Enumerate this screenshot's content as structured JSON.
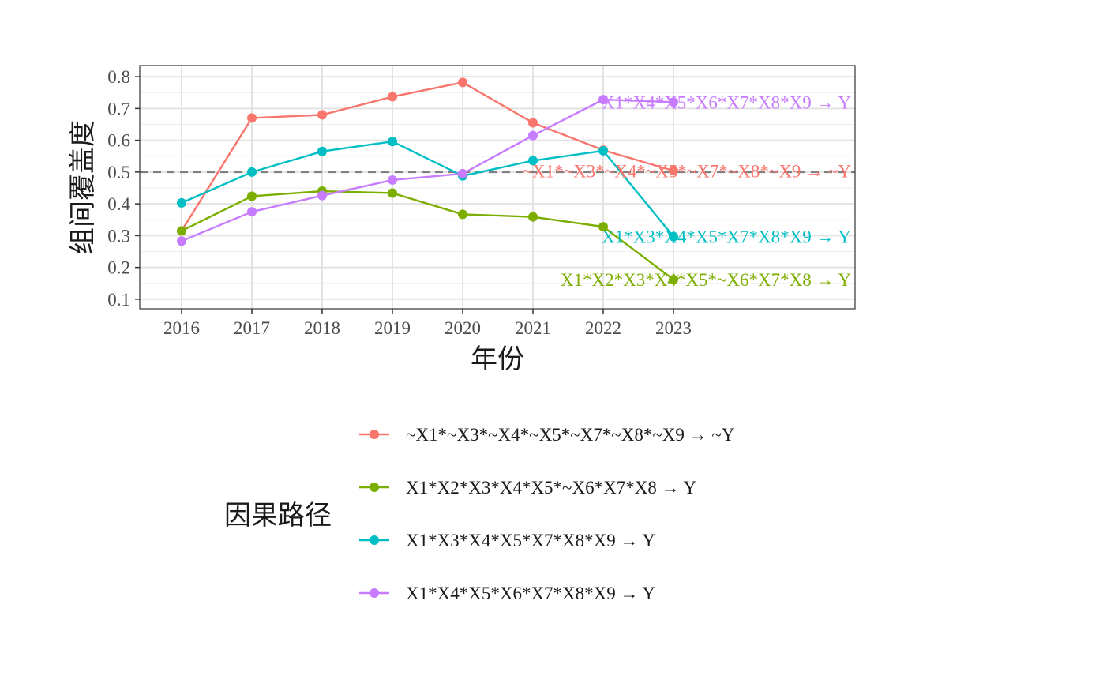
{
  "chart_data": {
    "type": "line",
    "xlabel": "年份",
    "ylabel": "组间覆盖度",
    "x": [
      2016,
      2017,
      2018,
      2019,
      2020,
      2021,
      2022,
      2023
    ],
    "ylim": [
      0.07,
      0.835
    ],
    "yticks": [
      0.1,
      0.2,
      0.3,
      0.4,
      0.5,
      0.6,
      0.7,
      0.8
    ],
    "reference_line": {
      "y": 0.5,
      "style": "dashed",
      "color": "#808080"
    },
    "grid": true,
    "legend": {
      "title": "因果路径",
      "placement": "bottom"
    },
    "series": [
      {
        "name": "~X1*~X3*~X4*~X5*~X7*~X8*~X9 → ~Y",
        "end_label": "~X1*~X3*~X4*~X5*~X7*~X8*~X9 → ~Y",
        "color": "#F8766D",
        "values": [
          0.315,
          0.67,
          0.68,
          0.737,
          0.782,
          0.655,
          0.569,
          0.504
        ]
      },
      {
        "name": "X1*X2*X3*X4*X5*~X6*X7*X8 → Y",
        "end_label": "X1*X2*X3*X4*X5*~X6*X7*X8 → Y",
        "color": "#7CAE00",
        "values": [
          0.315,
          0.424,
          0.44,
          0.434,
          0.367,
          0.359,
          0.328,
          0.162
        ]
      },
      {
        "name": "X1*X3*X4*X5*X7*X8*X9 → Y",
        "end_label": "X1*X3*X4*X5*X7*X8*X9 → Y",
        "color": "#00BFC4",
        "values": [
          0.403,
          0.5,
          0.565,
          0.596,
          0.488,
          0.536,
          0.567,
          0.297
        ]
      },
      {
        "name": "X1*X4*X5*X6*X7*X8*X9 → Y",
        "end_label": "X1*X4*X5*X6*X7*X8*X9 → Y",
        "color": "#C77CFF",
        "values": [
          0.283,
          0.375,
          0.426,
          0.475,
          0.495,
          0.615,
          0.728,
          0.72
        ]
      }
    ]
  }
}
